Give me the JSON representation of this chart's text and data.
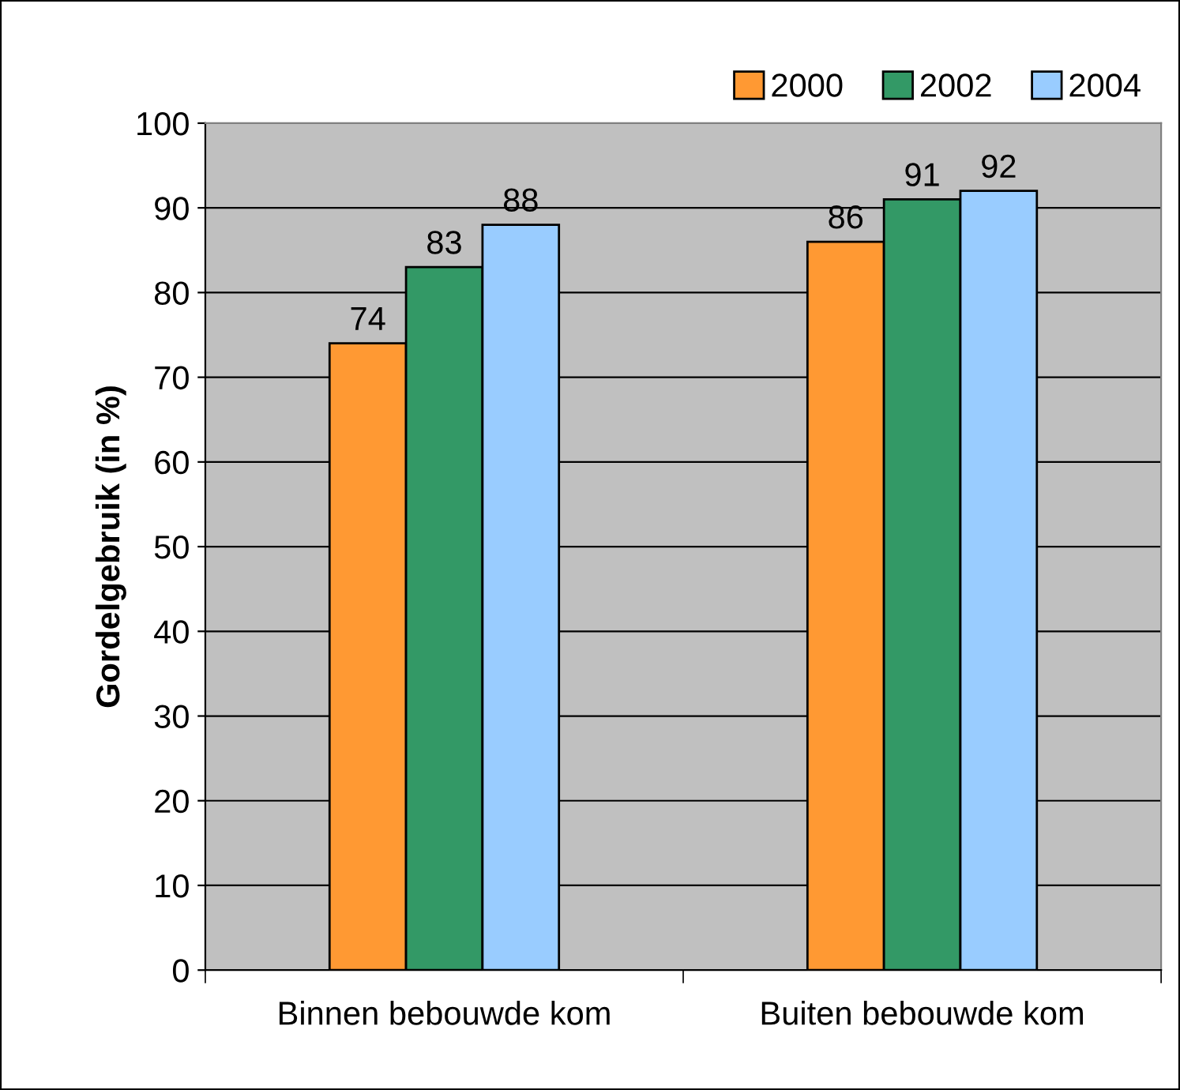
{
  "chart_data": {
    "type": "bar",
    "ylabel": "Gordelgebruik (in %)",
    "categories": [
      "Binnen bebouwde kom",
      "Buiten bebouwde kom"
    ],
    "series": [
      {
        "name": "2000",
        "color": "#ff9933",
        "values": [
          74,
          86
        ]
      },
      {
        "name": "2002",
        "color": "#339966",
        "values": [
          83,
          91
        ]
      },
      {
        "name": "2004",
        "color": "#99ccff",
        "values": [
          88,
          92
        ]
      }
    ],
    "ylim": [
      0,
      100
    ],
    "yticks": [
      0,
      10,
      20,
      30,
      40,
      50,
      60,
      70,
      80,
      90,
      100
    ],
    "grid": "y",
    "legend": "top right",
    "data_labels": true
  }
}
